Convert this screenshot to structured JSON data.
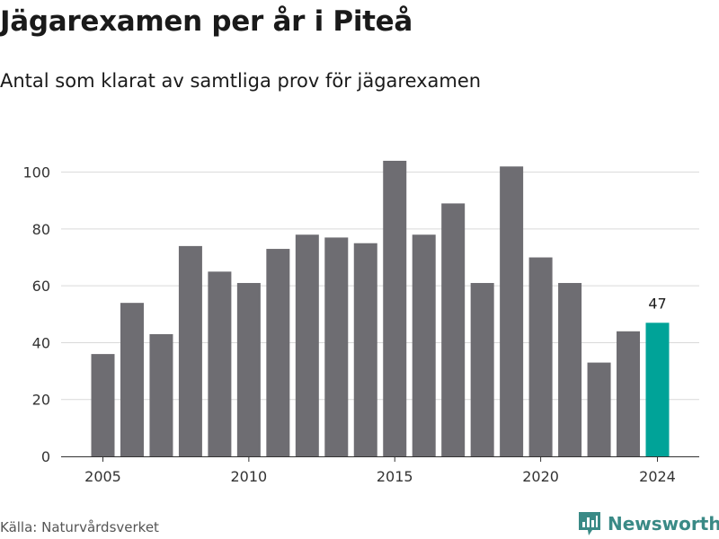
{
  "title": "Jägarexamen per år i Piteå",
  "subtitle": "Antal som klarat av samtliga prov för jägarexamen",
  "source": "Källa: Naturvårdsverket",
  "brand": {
    "name": "Newsworthy",
    "color": "#3a8a86"
  },
  "colors": {
    "bar": "#6e6d72",
    "highlight": "#00a398",
    "grid": "#d9d9d9",
    "axis": "#333333"
  },
  "chart_data": {
    "type": "bar",
    "title": "Jägarexamen per år i Piteå",
    "subtitle": "Antal som klarat av samtliga prov för jägarexamen",
    "xlabel": "",
    "ylabel": "",
    "categories": [
      2005,
      2006,
      2007,
      2008,
      2009,
      2010,
      2011,
      2012,
      2013,
      2014,
      2015,
      2016,
      2017,
      2018,
      2019,
      2020,
      2021,
      2022,
      2023,
      2024
    ],
    "values": [
      36,
      54,
      43,
      74,
      65,
      61,
      73,
      78,
      77,
      75,
      104,
      78,
      89,
      61,
      102,
      70,
      61,
      33,
      44,
      47
    ],
    "highlight_index": 19,
    "data_labels": [
      {
        "index": 19,
        "text": "47"
      }
    ],
    "ylim": [
      0,
      110
    ],
    "yticks": [
      0,
      20,
      40,
      60,
      80,
      100
    ],
    "xticks": [
      2005,
      2010,
      2015,
      2020,
      2024
    ],
    "grid": true,
    "legend": "none"
  }
}
